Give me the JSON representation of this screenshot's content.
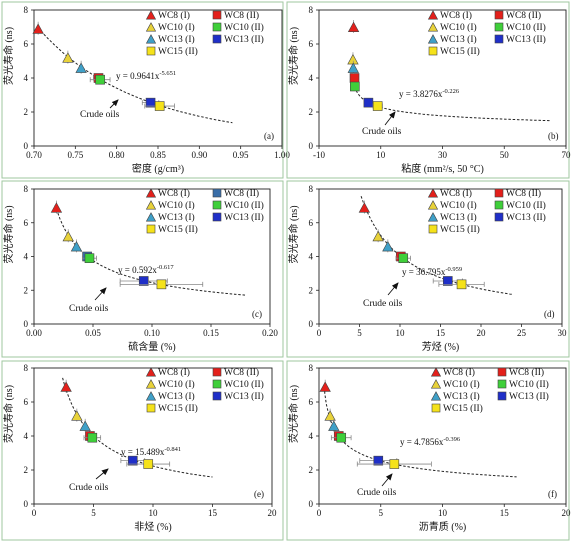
{
  "chart_data": [
    {
      "id": "a",
      "type": "scatter",
      "panel_label": "(a)",
      "xlabel": "密度 (g/cm³)",
      "ylabel": "荧光寿命 (ns)",
      "xlim": [
        0.7,
        1.0
      ],
      "ylim": [
        0,
        8
      ],
      "xticks": [
        "0.70",
        "0.75",
        "0.80",
        "0.85",
        "0.90",
        "0.95",
        "1.00"
      ],
      "yticks": [
        "0",
        "2",
        "4",
        "6",
        "8"
      ],
      "fit": {
        "equation": "y = 0.9641x-5.651",
        "base": "y = 0.9641x",
        "exp": "-5.651",
        "a": 0.9641,
        "b": -5.651,
        "x_range": [
          0.705,
          0.94
        ]
      },
      "annotation": "Crude oils",
      "series": [
        {
          "name": "WC8 (I)",
          "marker": "triangle",
          "color": "#e3201b",
          "x": 0.705,
          "y": 6.9,
          "xerr": 0.0
        },
        {
          "name": "WC8 (II)",
          "marker": "square",
          "color": "#e3201b",
          "x": 0.778,
          "y": 4.0,
          "xerr": 0.006
        },
        {
          "name": "WC10 (I)",
          "marker": "triangle",
          "color": "#e8d23a",
          "x": 0.741,
          "y": 5.2,
          "xerr": 0.0
        },
        {
          "name": "WC10 (II)",
          "marker": "square",
          "color": "#3fcf3a",
          "x": 0.78,
          "y": 3.9,
          "xerr": 0.012
        },
        {
          "name": "WC13 (I)",
          "marker": "triangle",
          "color": "#3fa0c8",
          "x": 0.757,
          "y": 4.6,
          "xerr": 0.0
        },
        {
          "name": "WC13 (II)",
          "marker": "square",
          "color": "#1f2fc8",
          "x": 0.841,
          "y": 2.55,
          "xerr": 0.01
        },
        {
          "name": "WC15 (II)",
          "marker": "square",
          "color": "#f5e21a",
          "x": 0.852,
          "y": 2.35,
          "xerr": 0.018
        }
      ]
    },
    {
      "id": "b",
      "type": "scatter",
      "panel_label": "(b)",
      "xlabel": "粘度 (mm²/s, 50 °C)",
      "ylabel": "荧光寿命 (ns)",
      "xlim": [
        -10,
        70
      ],
      "ylim": [
        0,
        8
      ],
      "xticks": [
        "-10",
        "10",
        "30",
        "50",
        "70"
      ],
      "yticks": [
        "0",
        "2",
        "4",
        "6",
        "8"
      ],
      "fit": {
        "equation": "y = 3.8276x-0.226",
        "base": "y = 3.8276x",
        "exp": "-0.226",
        "a": 3.8276,
        "b": -0.226,
        "x_range": [
          1.5,
          65
        ]
      },
      "annotation": "Crude oils",
      "series": [
        {
          "name": "WC8 (I)",
          "marker": "triangle",
          "color": "#e3201b",
          "x": 1.2,
          "y": 7.0,
          "xerr": 0.0
        },
        {
          "name": "WC8 (II)",
          "marker": "square",
          "color": "#e3201b",
          "x": 1.5,
          "y": 4.0,
          "xerr": 0.0
        },
        {
          "name": "WC10 (I)",
          "marker": "triangle",
          "color": "#e8d23a",
          "x": 1.0,
          "y": 5.1,
          "xerr": 0.0
        },
        {
          "name": "WC10 (II)",
          "marker": "square",
          "color": "#3fcf3a",
          "x": 1.6,
          "y": 3.5,
          "xerr": 0.0
        },
        {
          "name": "WC13 (I)",
          "marker": "triangle",
          "color": "#3fa0c8",
          "x": 1.1,
          "y": 4.6,
          "xerr": 0.0
        },
        {
          "name": "WC13 (II)",
          "marker": "square",
          "color": "#1f2fc8",
          "x": 6.0,
          "y": 2.55,
          "xerr": 1.0
        },
        {
          "name": "WC15 (II)",
          "marker": "square",
          "color": "#f5e21a",
          "x": 9.0,
          "y": 2.35,
          "xerr": 1.5
        }
      ]
    },
    {
      "id": "c",
      "type": "scatter",
      "panel_label": "(c)",
      "xlabel": "硫含量 (%)",
      "ylabel": "荧光寿命 (ns)",
      "xlim": [
        0,
        0.2
      ],
      "ylim": [
        0,
        8
      ],
      "xticks": [
        "0.00",
        "0.05",
        "0.10",
        "0.15",
        "0.20"
      ],
      "yticks": [
        "0",
        "2",
        "4",
        "6",
        "8"
      ],
      "fit": {
        "equation": "y = 0.592x-0.617",
        "base": "y = 0.592x",
        "exp": "-0.617",
        "a": 0.592,
        "b": -0.617,
        "x_range": [
          0.018,
          0.18
        ]
      },
      "annotation": "Crude oils",
      "series": [
        {
          "name": "WC8 (I)",
          "marker": "triangle",
          "color": "#e3201b",
          "x": 0.019,
          "y": 6.9,
          "xerr": 0.0
        },
        {
          "name": "WC8 (II)",
          "marker": "square",
          "color": "#3a6ea8",
          "x": 0.045,
          "y": 4.0,
          "xerr": 0.003
        },
        {
          "name": "WC10 (I)",
          "marker": "triangle",
          "color": "#e8d23a",
          "x": 0.029,
          "y": 5.2,
          "xerr": 0.0
        },
        {
          "name": "WC10 (II)",
          "marker": "square",
          "color": "#3fcf3a",
          "x": 0.047,
          "y": 3.9,
          "xerr": 0.006
        },
        {
          "name": "WC13 (I)",
          "marker": "triangle",
          "color": "#3fa0c8",
          "x": 0.036,
          "y": 4.6,
          "xerr": 0.0
        },
        {
          "name": "WC13 (II)",
          "marker": "square",
          "color": "#1f2fc8",
          "x": 0.093,
          "y": 2.55,
          "xerr": 0.02
        },
        {
          "name": "WC15 (II)",
          "marker": "square",
          "color": "#f5e21a",
          "x": 0.108,
          "y": 2.35,
          "xerr": 0.035
        }
      ]
    },
    {
      "id": "d",
      "type": "scatter",
      "panel_label": "(d)",
      "xlabel": "芳烃 (%)",
      "ylabel": "荧光寿命 (ns)",
      "xlim": [
        0,
        30
      ],
      "ylim": [
        0,
        8
      ],
      "xticks": [
        "0",
        "5",
        "10",
        "15",
        "20",
        "25",
        "30"
      ],
      "yticks": [
        "0",
        "2",
        "4",
        "6",
        "8"
      ],
      "fit": {
        "equation": "y = 36.795x-0.959",
        "base": "y = 36.795x",
        "exp": "-0.959",
        "a": 36.795,
        "b": -0.959,
        "x_range": [
          5.2,
          24
        ]
      },
      "annotation": "Crude oils",
      "series": [
        {
          "name": "WC8 (I)",
          "marker": "triangle",
          "color": "#e3201b",
          "x": 5.6,
          "y": 6.9,
          "xerr": 0.0
        },
        {
          "name": "WC8 (II)",
          "marker": "square",
          "color": "#e3201b",
          "x": 10.1,
          "y": 4.0,
          "xerr": 0.5
        },
        {
          "name": "WC10 (I)",
          "marker": "triangle",
          "color": "#e8d23a",
          "x": 7.3,
          "y": 5.2,
          "xerr": 0.0
        },
        {
          "name": "WC10 (II)",
          "marker": "square",
          "color": "#3fcf3a",
          "x": 10.4,
          "y": 3.9,
          "xerr": 0.9
        },
        {
          "name": "WC13 (I)",
          "marker": "triangle",
          "color": "#3fa0c8",
          "x": 8.5,
          "y": 4.6,
          "xerr": 0.0
        },
        {
          "name": "WC13 (II)",
          "marker": "square",
          "color": "#1f2fc8",
          "x": 15.9,
          "y": 2.55,
          "xerr": 1.8
        },
        {
          "name": "WC15 (II)",
          "marker": "square",
          "color": "#f5e21a",
          "x": 17.6,
          "y": 2.35,
          "xerr": 2.8
        }
      ]
    },
    {
      "id": "e",
      "type": "scatter",
      "panel_label": "(e)",
      "xlabel": "非烃 (%)",
      "ylabel": "荧光寿命 (ns)",
      "xlim": [
        0,
        20
      ],
      "ylim": [
        0,
        8
      ],
      "xticks": [
        "0",
        "5",
        "10",
        "15",
        "20"
      ],
      "yticks": [
        "0",
        "2",
        "4",
        "6",
        "8"
      ],
      "fit": {
        "equation": "y = 15.489x-0.841",
        "base": "y = 15.489x",
        "exp": "-0.841",
        "a": 15.489,
        "b": -0.841,
        "x_range": [
          2.4,
          15
        ]
      },
      "annotation": "Crude oils",
      "series": [
        {
          "name": "WC8 (I)",
          "marker": "triangle",
          "color": "#e3201b",
          "x": 2.7,
          "y": 6.9,
          "xerr": 0.0
        },
        {
          "name": "WC8 (II)",
          "marker": "square",
          "color": "#e3201b",
          "x": 4.7,
          "y": 4.0,
          "xerr": 0.3
        },
        {
          "name": "WC10 (I)",
          "marker": "triangle",
          "color": "#e8d23a",
          "x": 3.6,
          "y": 5.2,
          "xerr": 0.0
        },
        {
          "name": "WC10 (II)",
          "marker": "square",
          "color": "#3fcf3a",
          "x": 4.9,
          "y": 3.9,
          "xerr": 0.7
        },
        {
          "name": "WC13 (I)",
          "marker": "triangle",
          "color": "#3fa0c8",
          "x": 4.3,
          "y": 4.6,
          "xerr": 0.0
        },
        {
          "name": "WC13 (II)",
          "marker": "square",
          "color": "#1f2fc8",
          "x": 8.3,
          "y": 2.55,
          "xerr": 1.0
        },
        {
          "name": "WC15 (II)",
          "marker": "square",
          "color": "#f5e21a",
          "x": 9.6,
          "y": 2.35,
          "xerr": 1.8
        }
      ]
    },
    {
      "id": "f",
      "type": "scatter",
      "panel_label": "(f)",
      "xlabel": "沥青质 (%)",
      "ylabel": "荧光寿命 (ns)",
      "xlim": [
        0,
        20
      ],
      "ylim": [
        0,
        8
      ],
      "xticks": [
        "0",
        "5",
        "10",
        "15",
        "20"
      ],
      "yticks": [
        "0",
        "2",
        "4",
        "6",
        "8"
      ],
      "fit": {
        "equation": "y = 4.7856x-0.396",
        "base": "y = 4.7856x",
        "exp": "-0.396",
        "a": 4.7856,
        "b": -0.396,
        "x_range": [
          0.4,
          16
        ]
      },
      "annotation": "Crude oils",
      "series": [
        {
          "name": "WC8 (I)",
          "marker": "triangle",
          "color": "#e3201b",
          "x": 0.5,
          "y": 6.9,
          "xerr": 0.0
        },
        {
          "name": "WC8 (II)",
          "marker": "square",
          "color": "#e3201b",
          "x": 1.6,
          "y": 4.0,
          "xerr": 0.2
        },
        {
          "name": "WC10 (I)",
          "marker": "triangle",
          "color": "#e8d23a",
          "x": 0.9,
          "y": 5.2,
          "xerr": 0.0
        },
        {
          "name": "WC10 (II)",
          "marker": "square",
          "color": "#3fcf3a",
          "x": 1.8,
          "y": 3.9,
          "xerr": 0.8
        },
        {
          "name": "WC13 (I)",
          "marker": "triangle",
          "color": "#3fa0c8",
          "x": 1.2,
          "y": 4.6,
          "xerr": 0.0
        },
        {
          "name": "WC13 (II)",
          "marker": "square",
          "color": "#1f2fc8",
          "x": 4.8,
          "y": 2.55,
          "xerr": 1.5
        },
        {
          "name": "WC15 (II)",
          "marker": "square",
          "color": "#f5e21a",
          "x": 6.1,
          "y": 2.35,
          "xerr": 3.0
        }
      ]
    }
  ]
}
